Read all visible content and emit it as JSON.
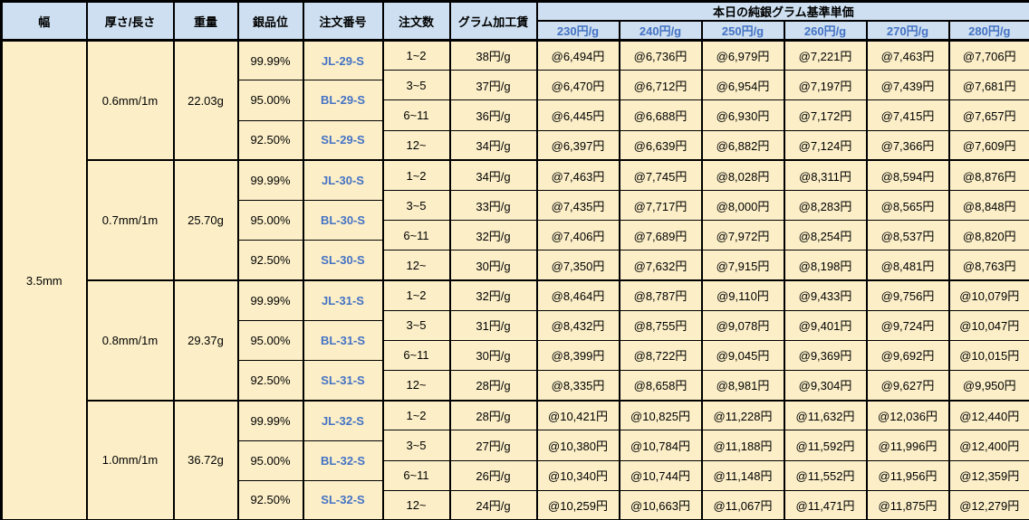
{
  "colors": {
    "header_bg": "#cddff0",
    "body_bg": "#fcefc8",
    "accent_blue": "#4472c4",
    "border": "#000000"
  },
  "table": {
    "header": {
      "width": "幅",
      "thickness": "厚さ/長さ",
      "weight": "重量",
      "purity": "銀品位",
      "order_no": "注文番号",
      "qty": "注文数",
      "fee": "グラム加工賃",
      "price_group": "本日の純銀グラム基準単価",
      "price_cols": [
        "230円/g",
        "240円/g",
        "250円/g",
        "260円/g",
        "270円/g",
        "280円/g"
      ]
    },
    "width_value": "3.5mm",
    "blocks": [
      {
        "thickness": "0.6mm/1m",
        "weight": "22.03g",
        "purities": [
          {
            "purity": "99.99%",
            "order_no": "JL-29-S"
          },
          {
            "purity": "95.00%",
            "order_no": "BL-29-S"
          },
          {
            "purity": "92.50%",
            "order_no": "SL-29-S"
          }
        ],
        "rows": [
          {
            "qty": "1~2",
            "fee": "38円/g",
            "prices": [
              "@6,494円",
              "@6,736円",
              "@6,979円",
              "@7,221円",
              "@7,463円",
              "@7,706円"
            ]
          },
          {
            "qty": "3~5",
            "fee": "37円/g",
            "prices": [
              "@6,470円",
              "@6,712円",
              "@6,954円",
              "@7,197円",
              "@7,439円",
              "@7,681円"
            ]
          },
          {
            "qty": "6~11",
            "fee": "36円/g",
            "prices": [
              "@6,445円",
              "@6,688円",
              "@6,930円",
              "@7,172円",
              "@7,415円",
              "@7,657円"
            ]
          },
          {
            "qty": "12~",
            "fee": "34円/g",
            "prices": [
              "@6,397円",
              "@6,639円",
              "@6,882円",
              "@7,124円",
              "@7,366円",
              "@7,609円"
            ]
          }
        ]
      },
      {
        "thickness": "0.7mm/1m",
        "weight": "25.70g",
        "purities": [
          {
            "purity": "99.99%",
            "order_no": "JL-30-S"
          },
          {
            "purity": "95.00%",
            "order_no": "BL-30-S"
          },
          {
            "purity": "92.50%",
            "order_no": "SL-30-S"
          }
        ],
        "rows": [
          {
            "qty": "1~2",
            "fee": "34円/g",
            "prices": [
              "@7,463円",
              "@7,745円",
              "@8,028円",
              "@8,311円",
              "@8,594円",
              "@8,876円"
            ]
          },
          {
            "qty": "3~5",
            "fee": "33円/g",
            "prices": [
              "@7,435円",
              "@7,717円",
              "@8,000円",
              "@8,283円",
              "@8,565円",
              "@8,848円"
            ]
          },
          {
            "qty": "6~11",
            "fee": "32円/g",
            "prices": [
              "@7,406円",
              "@7,689円",
              "@7,972円",
              "@8,254円",
              "@8,537円",
              "@8,820円"
            ]
          },
          {
            "qty": "12~",
            "fee": "30円/g",
            "prices": [
              "@7,350円",
              "@7,632円",
              "@7,915円",
              "@8,198円",
              "@8,481円",
              "@8,763円"
            ]
          }
        ]
      },
      {
        "thickness": "0.8mm/1m",
        "weight": "29.37g",
        "purities": [
          {
            "purity": "99.99%",
            "order_no": "JL-31-S"
          },
          {
            "purity": "95.00%",
            "order_no": "BL-31-S"
          },
          {
            "purity": "92.50%",
            "order_no": "SL-31-S"
          }
        ],
        "rows": [
          {
            "qty": "1~2",
            "fee": "32円/g",
            "prices": [
              "@8,464円",
              "@8,787円",
              "@9,110円",
              "@9,433円",
              "@9,756円",
              "@10,079円"
            ]
          },
          {
            "qty": "3~5",
            "fee": "31円/g",
            "prices": [
              "@8,432円",
              "@8,755円",
              "@9,078円",
              "@9,401円",
              "@9,724円",
              "@10,047円"
            ]
          },
          {
            "qty": "6~11",
            "fee": "30円/g",
            "prices": [
              "@8,399円",
              "@8,722円",
              "@9,045円",
              "@9,369円",
              "@9,692円",
              "@10,015円"
            ]
          },
          {
            "qty": "12~",
            "fee": "28円/g",
            "prices": [
              "@8,335円",
              "@8,658円",
              "@8,981円",
              "@9,304円",
              "@9,627円",
              "@9,950円"
            ]
          }
        ]
      },
      {
        "thickness": "1.0mm/1m",
        "weight": "36.72g",
        "purities": [
          {
            "purity": "99.99%",
            "order_no": "JL-32-S"
          },
          {
            "purity": "95.00%",
            "order_no": "BL-32-S"
          },
          {
            "purity": "92.50%",
            "order_no": "SL-32-S"
          }
        ],
        "rows": [
          {
            "qty": "1~2",
            "fee": "28円/g",
            "prices": [
              "@10,421円",
              "@10,825円",
              "@11,228円",
              "@11,632円",
              "@12,036円",
              "@12,440円"
            ]
          },
          {
            "qty": "3~5",
            "fee": "27円/g",
            "prices": [
              "@10,380円",
              "@10,784円",
              "@11,188円",
              "@11,592円",
              "@11,996円",
              "@12,400円"
            ]
          },
          {
            "qty": "6~11",
            "fee": "26円/g",
            "prices": [
              "@10,340円",
              "@10,744円",
              "@11,148円",
              "@11,552円",
              "@11,956円",
              "@12,359円"
            ]
          },
          {
            "qty": "12~",
            "fee": "24円/g",
            "prices": [
              "@10,259円",
              "@10,663円",
              "@11,067円",
              "@11,471円",
              "@11,875円",
              "@12,279円"
            ]
          }
        ]
      }
    ]
  }
}
